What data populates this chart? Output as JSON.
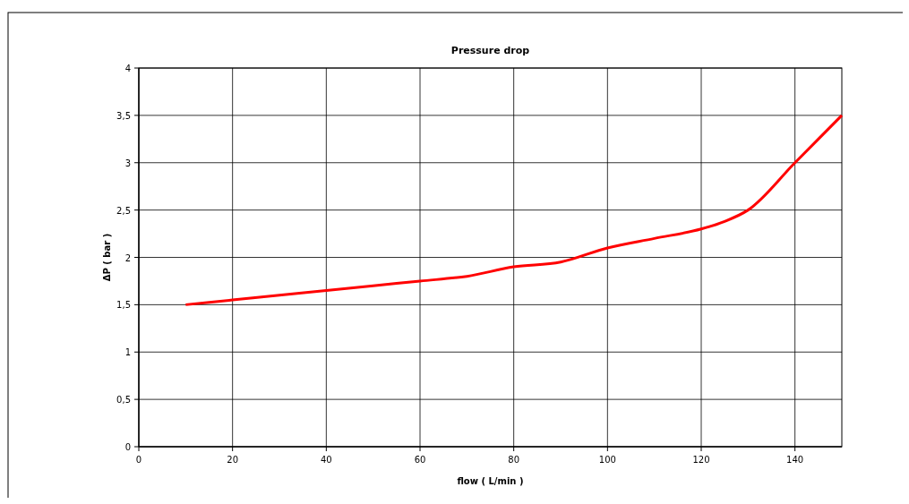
{
  "chart_data": {
    "type": "line",
    "title": "Pressure drop",
    "xlabel": "flow ( L/min )",
    "ylabel": "ΔP ( bar )",
    "x": [
      10,
      20,
      30,
      40,
      50,
      60,
      70,
      80,
      90,
      100,
      110,
      120,
      125,
      130,
      140,
      150
    ],
    "series": [
      {
        "color": "#ff0000",
        "values": [
          1.5,
          1.55,
          1.6,
          1.65,
          1.7,
          1.75,
          1.8,
          1.9,
          1.95,
          2.1,
          2.2,
          2.3,
          2.38,
          2.5,
          3.0,
          3.5
        ]
      }
    ],
    "xlim": [
      0,
      150
    ],
    "xticks": [
      0,
      20,
      40,
      60,
      80,
      100,
      120,
      140
    ],
    "ylim": [
      0,
      4
    ],
    "yticks": [
      0,
      {
        "value": 0.5,
        "label": "0,5"
      },
      1,
      {
        "value": 1.5,
        "label": "1,5"
      },
      2,
      {
        "value": 2.5,
        "label": "2,5"
      },
      3,
      {
        "value": 3.5,
        "label": "3,5"
      },
      4
    ],
    "grid": true,
    "marker": "none",
    "line_style": "solid"
  }
}
